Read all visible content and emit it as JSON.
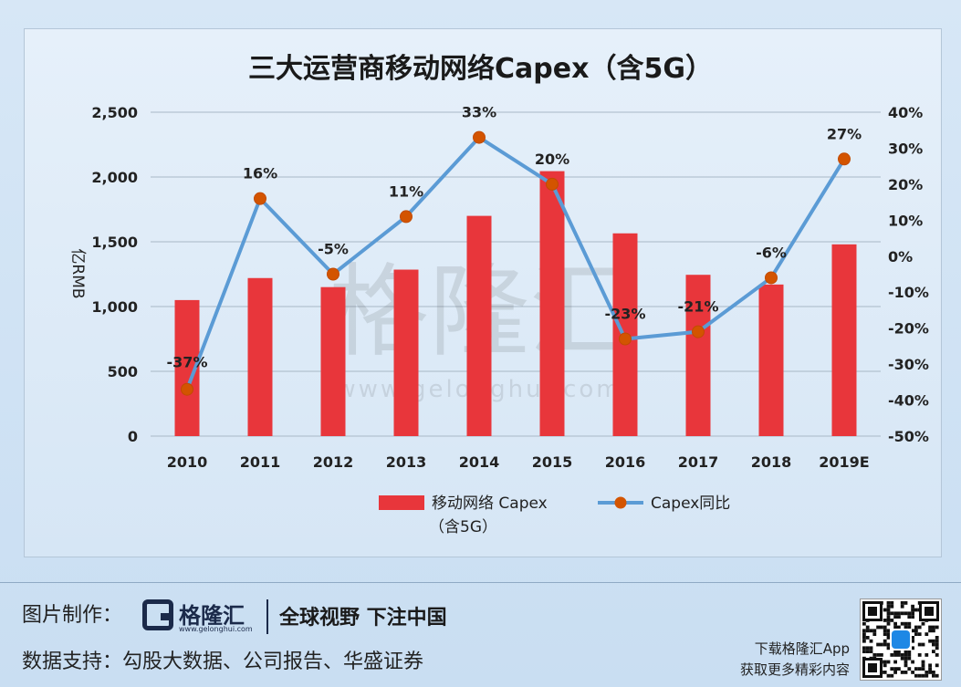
{
  "chart_data": {
    "type": "bar",
    "title": "三大运营商移动网络Capex（含5G）",
    "categories": [
      "2010",
      "2011",
      "2012",
      "2013",
      "2014",
      "2015",
      "2016",
      "2017",
      "2018",
      "2019E"
    ],
    "series": [
      {
        "name": "移动网络 Capex（含5G）",
        "type": "bar",
        "axis": "left",
        "values": [
          1050,
          1220,
          1150,
          1285,
          1700,
          2045,
          1565,
          1245,
          1170,
          1480
        ]
      },
      {
        "name": "Capex同比",
        "type": "line",
        "axis": "right",
        "values": [
          -37,
          16,
          -5,
          11,
          33,
          20,
          -23,
          -21,
          -6,
          27
        ],
        "labels": [
          "-37%",
          "16%",
          "-5%",
          "11%",
          "33%",
          "20%",
          "-23%",
          "-21%",
          "-6%",
          "27%"
        ]
      }
    ],
    "ylabel": "亿RMB",
    "ylim": [
      0,
      2500
    ],
    "yticks": [
      "0",
      "500",
      "1,000",
      "1,500",
      "2,000",
      "2,500"
    ],
    "y2lim": [
      -50,
      40
    ],
    "y2ticks": [
      "-50%",
      "-40%",
      "-30%",
      "-20%",
      "-10%",
      "0%",
      "10%",
      "20%",
      "30%",
      "40%"
    ],
    "legend_line1": "移动网络 Capex",
    "legend_line2": "（含5G）",
    "legend_position": "bottom",
    "grid": true,
    "colors": {
      "bar": "#e8363b",
      "line": "#5b9bd5",
      "marker": "#d35400"
    }
  },
  "watermark": "格隆汇 www.gelonghui.com",
  "footer": {
    "credit_label": "图片制作：",
    "logo_name": "格隆汇",
    "logo_url": "www.gelonghui.com",
    "slogan": "全球视野 下注中国",
    "source": "数据支持：勾股大数据、公司报告、华盛证券",
    "app_line1": "下载格隆汇App",
    "app_line2": "获取更多精彩内容"
  }
}
